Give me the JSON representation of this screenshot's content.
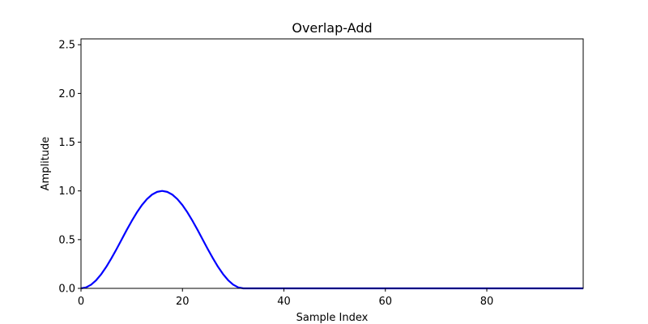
{
  "chart_data": {
    "type": "line",
    "title": "Overlap-Add",
    "xlabel": "Sample Index",
    "ylabel": "Amplitude",
    "xlim": [
      0,
      99
    ],
    "ylim": [
      0,
      2.56
    ],
    "grid": false,
    "x_ticks": [
      0,
      20,
      40,
      60,
      80
    ],
    "x_tick_labels": [
      "0",
      "20",
      "40",
      "60",
      "80"
    ],
    "y_ticks": [
      0.0,
      0.5,
      1.0,
      1.5,
      2.0,
      2.5
    ],
    "y_tick_labels": [
      "0.0",
      "0.5",
      "1.0",
      "1.5",
      "2.0",
      "2.5"
    ],
    "series": [
      {
        "color": "#0000ff",
        "x": [
          0,
          1,
          2,
          3,
          4,
          5,
          6,
          7,
          8,
          9,
          10,
          11,
          12,
          13,
          14,
          15,
          16,
          17,
          18,
          19,
          20,
          21,
          22,
          23,
          24,
          25,
          26,
          27,
          28,
          29,
          30,
          31,
          32,
          33,
          34,
          35,
          36,
          37,
          38,
          39,
          40,
          41,
          42,
          43,
          44,
          45,
          46,
          47,
          48,
          49,
          50,
          51,
          52,
          53,
          54,
          55,
          56,
          57,
          58,
          59,
          60,
          61,
          62,
          63,
          64,
          65,
          66,
          67,
          68,
          69,
          70,
          71,
          72,
          73,
          74,
          75,
          76,
          77,
          78,
          79,
          80,
          81,
          82,
          83,
          84,
          85,
          86,
          87,
          88,
          89,
          90,
          91,
          92,
          93,
          94,
          95,
          96,
          97,
          98,
          99
        ],
        "y": [
          0,
          0.01,
          0.038,
          0.084,
          0.146,
          0.222,
          0.309,
          0.402,
          0.5,
          0.598,
          0.691,
          0.778,
          0.854,
          0.916,
          0.962,
          0.99,
          1.0,
          0.99,
          0.962,
          0.916,
          0.854,
          0.778,
          0.691,
          0.598,
          0.5,
          0.402,
          0.309,
          0.222,
          0.146,
          0.084,
          0.038,
          0.01,
          0,
          0,
          0,
          0,
          0,
          0,
          0,
          0,
          0,
          0,
          0,
          0,
          0,
          0,
          0,
          0,
          0,
          0,
          0,
          0,
          0,
          0,
          0,
          0,
          0,
          0,
          0,
          0,
          0,
          0,
          0,
          0,
          0,
          0,
          0,
          0,
          0,
          0,
          0,
          0,
          0,
          0,
          0,
          0,
          0,
          0,
          0,
          0,
          0,
          0,
          0,
          0,
          0,
          0,
          0,
          0,
          0,
          0,
          0,
          0,
          0,
          0,
          0,
          0,
          0,
          0,
          0,
          0
        ]
      }
    ]
  }
}
